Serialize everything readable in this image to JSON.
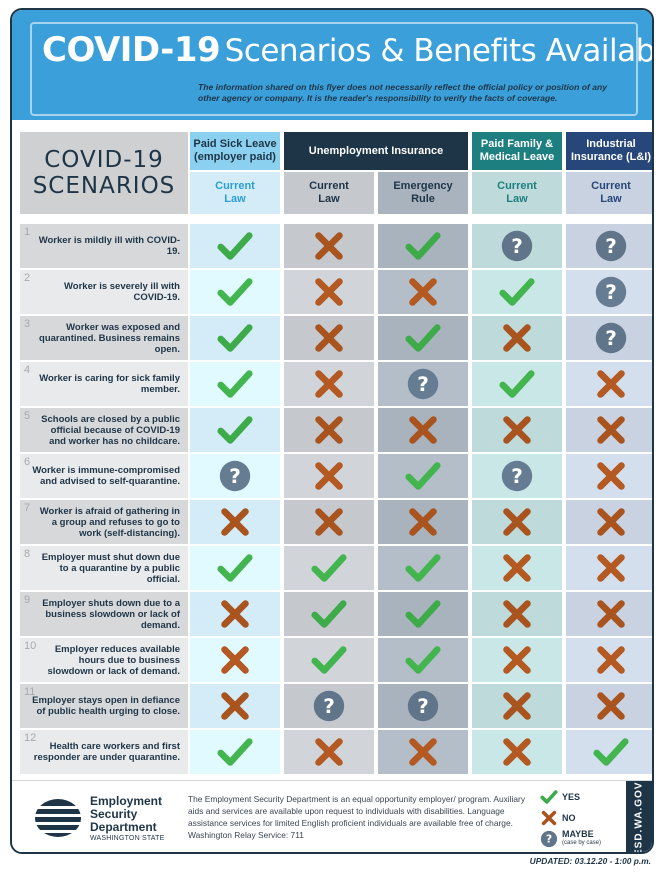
{
  "header": {
    "title_bold": "COVID-19",
    "title_rest": "Scenarios & Benefits Available",
    "disclaimer": "The information shared on this flyer does not necessarily reflect the official policy or position of any other agency or company. It is the reader's responsibility to verify the facts of coverage."
  },
  "scenarios_heading": {
    "line1": "COVID-19",
    "line2": "SCENARIOS"
  },
  "benefit_groups": [
    {
      "label": "Paid Sick Leave (employer paid)",
      "color": "#8bd1ef",
      "text_color": "#1e3548"
    },
    {
      "label": "Unemployment Insurance",
      "color": "#1e3548",
      "text_color": "#ffffff"
    },
    {
      "label": "Paid Family & Medical Leave",
      "color": "#1e7f80",
      "text_color": "#ffffff"
    },
    {
      "label": "Industrial Insurance (L&I)",
      "color": "#27477a",
      "text_color": "#ffffff"
    }
  ],
  "sub_columns": [
    {
      "label": "Current Law",
      "bg": "#d4ecf8",
      "fg": "#2b9ed6"
    },
    {
      "label": "Current Law",
      "bg": "#c5c9ce",
      "fg": "#1e3548"
    },
    {
      "label": "Emergency Rule",
      "bg": "#a9b3bd",
      "fg": "#1e3548"
    },
    {
      "label": "Current Law",
      "bg": "#bedada",
      "fg": "#1e7f80"
    },
    {
      "label": "Current Law",
      "bg": "#c8d2e0",
      "fg": "#27477a"
    }
  ],
  "rows": [
    {
      "num": "1",
      "text": "Worker is mildly ill with COVID-19.",
      "marks": [
        "yes",
        "no",
        "yes",
        "maybe",
        "maybe"
      ]
    },
    {
      "num": "2",
      "text": "Worker is severely ill with COVID-19.",
      "marks": [
        "yes",
        "no",
        "no",
        "yes",
        "maybe"
      ]
    },
    {
      "num": "3",
      "text": "Worker was exposed and quarantined. Business remains open.",
      "marks": [
        "yes",
        "no",
        "yes",
        "no",
        "maybe"
      ]
    },
    {
      "num": "4",
      "text": "Worker is caring for sick family member.",
      "marks": [
        "yes",
        "no",
        "maybe",
        "yes",
        "no"
      ]
    },
    {
      "num": "5",
      "text": "Schools are closed by a public official because of COVID-19 and worker has no childcare.",
      "marks": [
        "yes",
        "no",
        "no",
        "no",
        "no"
      ]
    },
    {
      "num": "6",
      "text": "Worker is immune-compromised and advised to self-quarantine.",
      "marks": [
        "maybe",
        "no",
        "yes",
        "maybe",
        "no"
      ]
    },
    {
      "num": "7",
      "text": "Worker is afraid of gathering in a group and refuses to go to work (self-distancing).",
      "marks": [
        "no",
        "no",
        "no",
        "no",
        "no"
      ]
    },
    {
      "num": "8",
      "text": "Employer must shut down due to a quarantine by a public official.",
      "marks": [
        "yes",
        "yes",
        "yes",
        "no",
        "no"
      ]
    },
    {
      "num": "9",
      "text": "Employer shuts down due to a business slowdown or lack of demand.",
      "marks": [
        "no",
        "yes",
        "yes",
        "no",
        "no"
      ]
    },
    {
      "num": "10",
      "text": "Employer reduces available hours due to business slowdown or lack of demand.",
      "marks": [
        "no",
        "yes",
        "yes",
        "no",
        "no"
      ]
    },
    {
      "num": "11",
      "text": "Employer stays open in defiance of public health urging to close.",
      "marks": [
        "no",
        "maybe",
        "maybe",
        "no",
        "no"
      ]
    },
    {
      "num": "12",
      "text": "Health care workers and first responder are under quarantine.",
      "marks": [
        "yes",
        "no",
        "no",
        "no",
        "yes"
      ]
    }
  ],
  "colors": {
    "yes": "#3eab4a",
    "no": "#a9541f",
    "maybe": "#60758a",
    "navy": "#1e3548",
    "header_blue": "#3b9fd9"
  },
  "footer": {
    "logo_name_1": "Employment",
    "logo_name_2": "Security",
    "logo_name_3": "Department",
    "logo_state": "WASHINGTON STATE",
    "eo_text": "The Employment Security Department is an equal opportunity employer/ program. Auxiliary aids and services are available upon request to individuals with disabilities. Language assistance services for limited English proficient individuals are available free of charge. Washington Relay Service: 711",
    "legend_yes": "YES",
    "legend_no": "NO",
    "legend_maybe": "MAYBE",
    "legend_maybe_sub": "(case by case)",
    "site": "ESD.WA.GOV"
  },
  "updated": "UPDATED: 03.12.20 - 1:00 p.m."
}
